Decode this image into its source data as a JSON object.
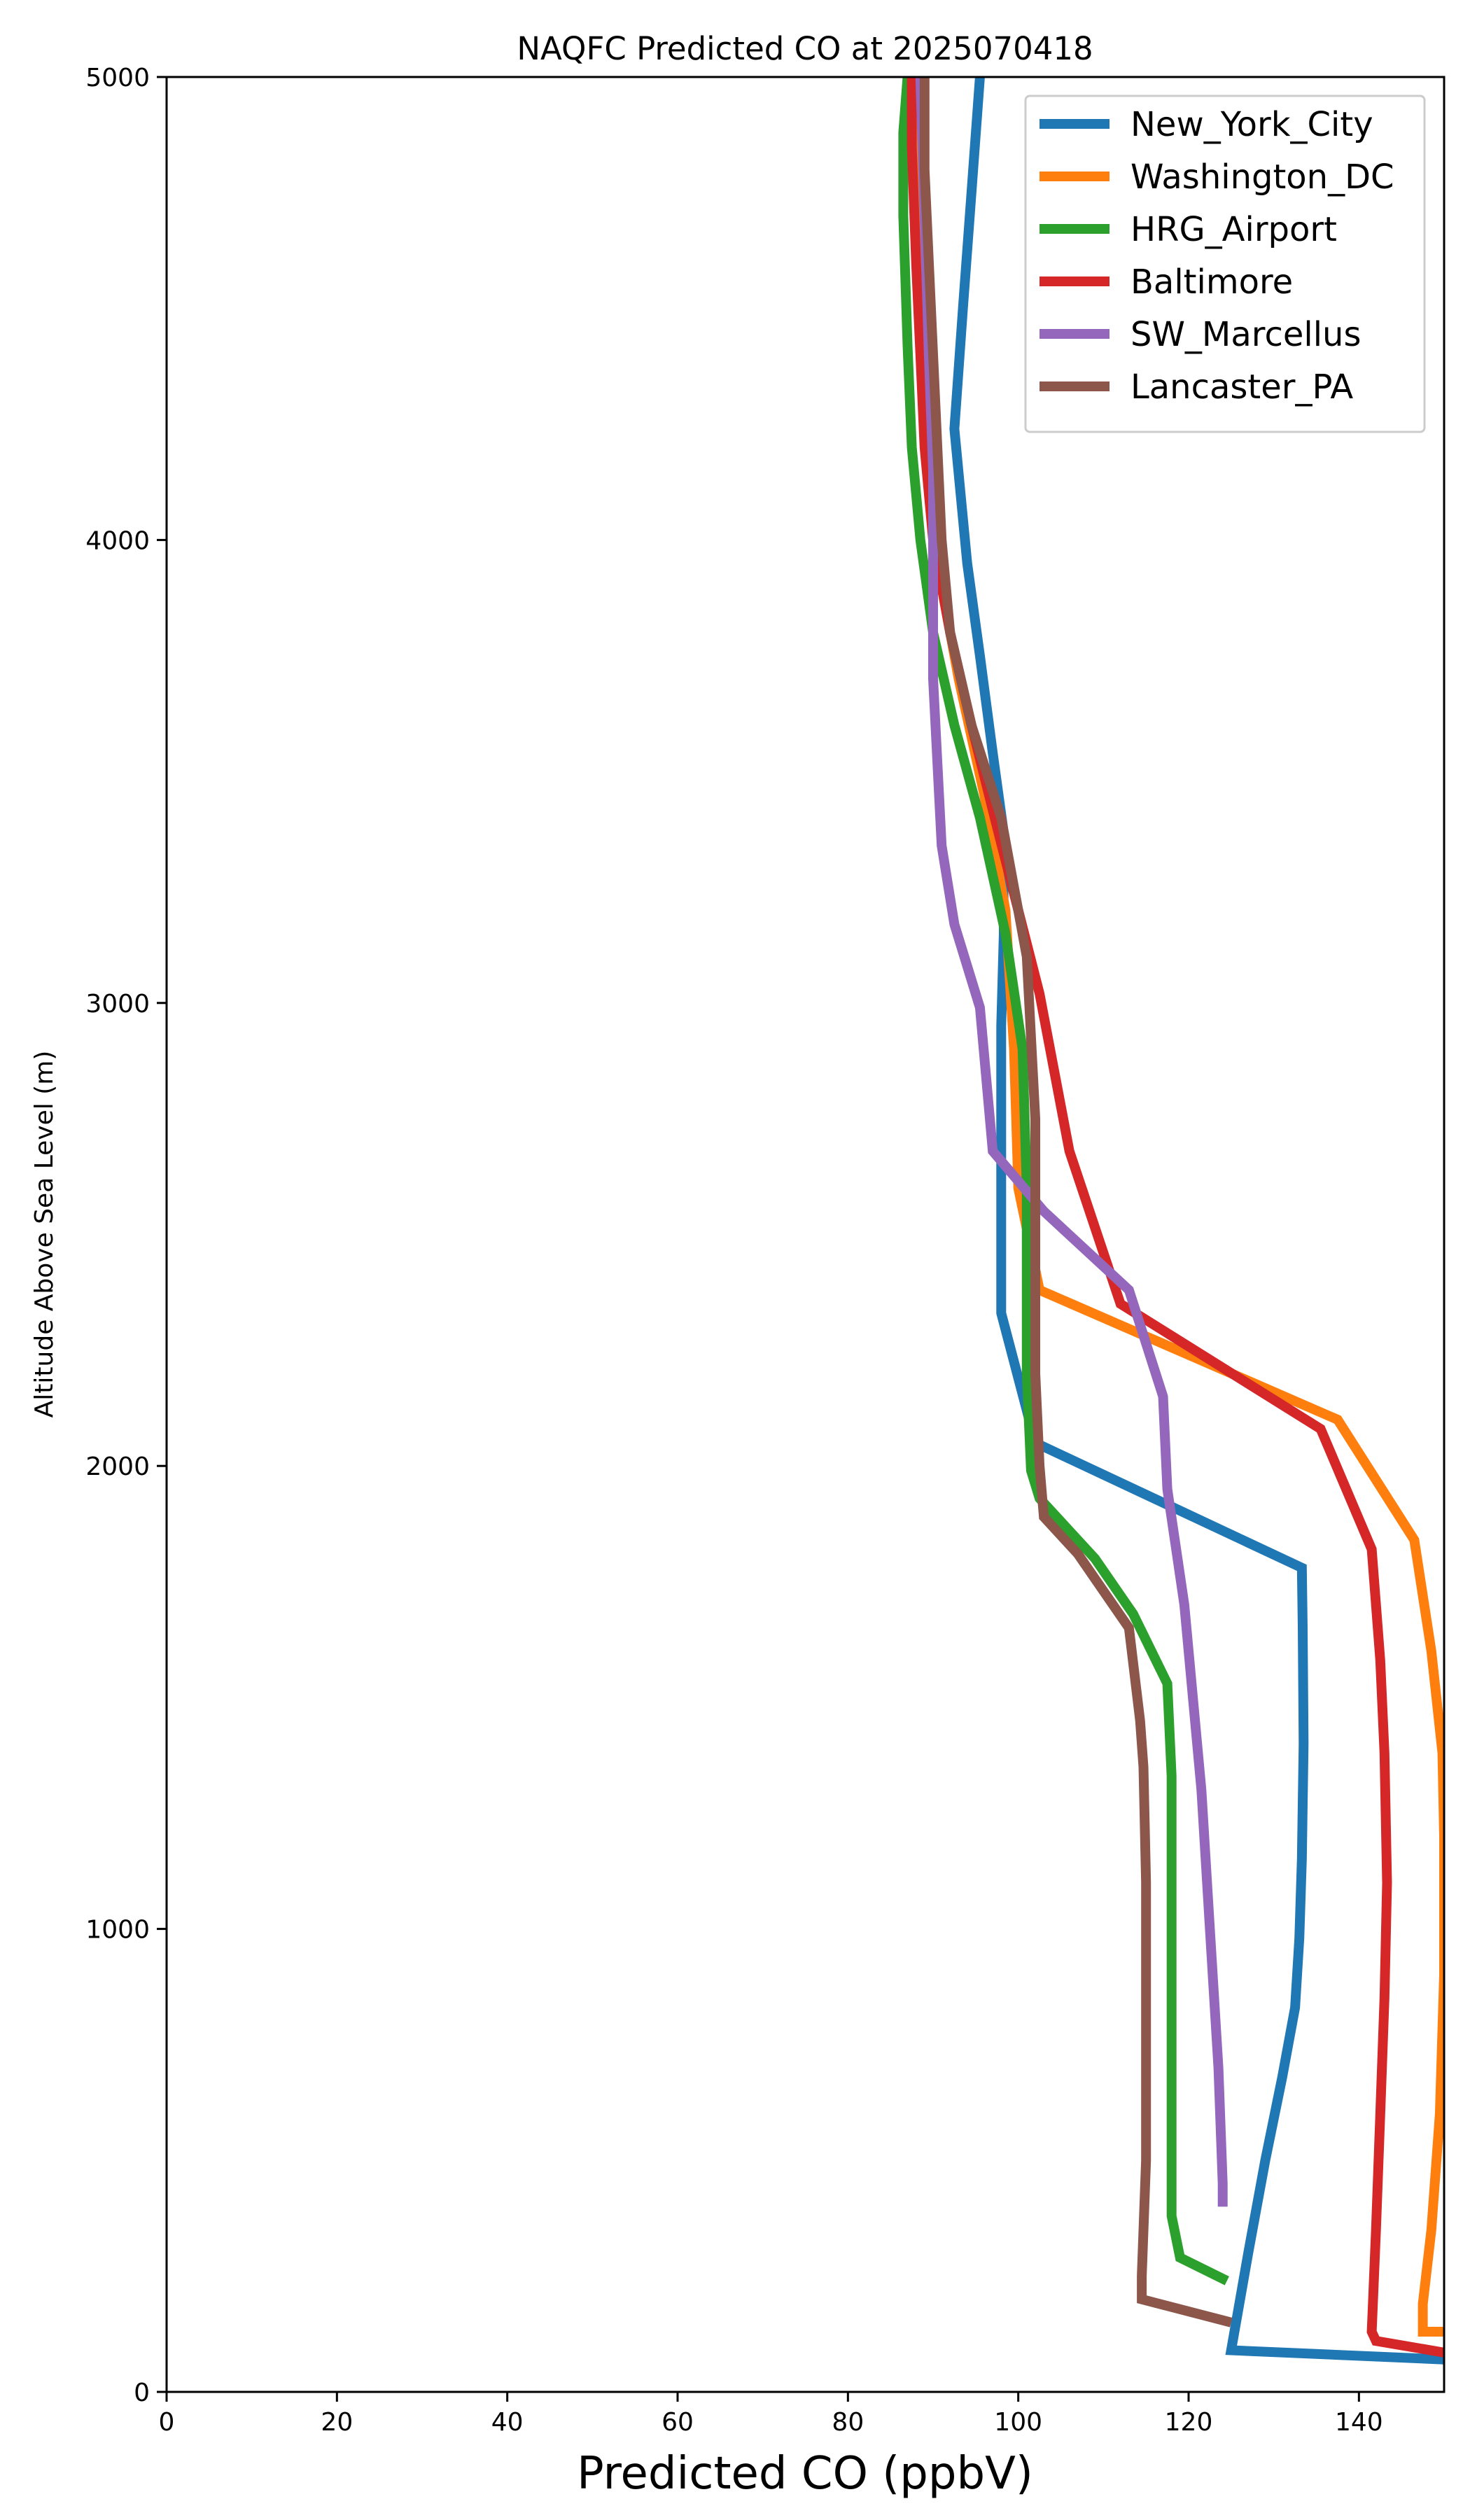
{
  "chart_data": {
    "type": "line",
    "title": "NAQFC Predicted CO at 2025070418",
    "xlabel": "Predicted CO (ppbV)",
    "ylabel": "Altitude Above Sea Level (m)",
    "xlim": [
      0,
      150
    ],
    "ylim": [
      0,
      5000
    ],
    "xticks": [
      "0",
      "20",
      "40",
      "60",
      "80",
      "100",
      "120",
      "140"
    ],
    "yticks": [
      "0",
      "1000",
      "2000",
      "3000",
      "4000",
      "5000"
    ],
    "grid": false,
    "legend_position": "top-right",
    "series": [
      {
        "name": "New_York_City",
        "color": "#1f77b4",
        "points": [
          [
            150,
            70
          ],
          [
            125,
            90
          ],
          [
            127,
            300
          ],
          [
            129,
            500
          ],
          [
            131,
            680
          ],
          [
            132.5,
            830
          ],
          [
            133,
            980
          ],
          [
            133.3,
            1150
          ],
          [
            133.5,
            1400
          ],
          [
            133.4,
            1650
          ],
          [
            133.3,
            1780
          ],
          [
            102,
            2050
          ],
          [
            98,
            2330
          ],
          [
            98,
            2650
          ],
          [
            98,
            2950
          ],
          [
            98.3,
            3150
          ],
          [
            98.2,
            3380
          ],
          [
            97,
            3540
          ],
          [
            95.5,
            3750
          ],
          [
            94,
            3950
          ],
          [
            92.5,
            4240
          ],
          [
            93.5,
            4500
          ],
          [
            94.5,
            4750
          ],
          [
            95.5,
            5000
          ]
        ]
      },
      {
        "name": "Washington_DC",
        "color": "#ff7f0e",
        "points": [
          [
            150,
            130
          ],
          [
            147.5,
            130
          ],
          [
            147.5,
            190
          ],
          [
            148.5,
            350
          ],
          [
            149.5,
            600
          ],
          [
            150,
            900
          ],
          [
            150,
            1200
          ],
          [
            149.8,
            1380
          ],
          [
            148.5,
            1600
          ],
          [
            146.5,
            1840
          ],
          [
            137.5,
            2100
          ],
          [
            102.5,
            2380
          ],
          [
            100,
            2600
          ],
          [
            99.5,
            2900
          ],
          [
            98.5,
            3200
          ],
          [
            96,
            3450
          ],
          [
            93,
            3700
          ],
          [
            91,
            3900
          ],
          [
            89.5,
            4200
          ],
          [
            88.5,
            4500
          ],
          [
            88,
            4800
          ],
          [
            88,
            5000
          ]
        ]
      },
      {
        "name": "HRG_Airport",
        "color": "#2ca02c",
        "points": [
          [
            124.5,
            240
          ],
          [
            119,
            290
          ],
          [
            118,
            380
          ],
          [
            118,
            800
          ],
          [
            118,
            1100
          ],
          [
            118,
            1330
          ],
          [
            117.5,
            1530
          ],
          [
            113.5,
            1680
          ],
          [
            109,
            1800
          ],
          [
            102.5,
            1930
          ],
          [
            101.5,
            1990
          ],
          [
            101,
            2200
          ],
          [
            101,
            2600
          ],
          [
            100.5,
            2900
          ],
          [
            98.5,
            3150
          ],
          [
            95.5,
            3400
          ],
          [
            92.5,
            3600
          ],
          [
            90,
            3800
          ],
          [
            88.5,
            4000
          ],
          [
            87.5,
            4200
          ],
          [
            87,
            4420
          ],
          [
            86.5,
            4700
          ],
          [
            86.5,
            4880
          ],
          [
            87,
            5000
          ]
        ]
      },
      {
        "name": "Baltimore",
        "color": "#d62728",
        "points": [
          [
            150,
            85
          ],
          [
            142,
            110
          ],
          [
            141.5,
            130
          ],
          [
            142,
            350
          ],
          [
            142.5,
            600
          ],
          [
            143,
            850
          ],
          [
            143.3,
            1100
          ],
          [
            143,
            1380
          ],
          [
            142.5,
            1580
          ],
          [
            141.5,
            1820
          ],
          [
            135.5,
            2080
          ],
          [
            112,
            2350
          ],
          [
            106,
            2680
          ],
          [
            102.5,
            3020
          ],
          [
            100,
            3200
          ],
          [
            97.5,
            3380
          ],
          [
            94.5,
            3600
          ],
          [
            92,
            3800
          ],
          [
            90,
            4000
          ],
          [
            89,
            4200
          ],
          [
            88.5,
            4400
          ],
          [
            88,
            4600
          ],
          [
            87.5,
            4850
          ],
          [
            87.5,
            5000
          ]
        ]
      },
      {
        "name": "SW_Marcellus",
        "color": "#9467bd",
        "points": [
          [
            124,
            400
          ],
          [
            124,
            450
          ],
          [
            123.5,
            700
          ],
          [
            122.5,
            1000
          ],
          [
            121.5,
            1300
          ],
          [
            120.5,
            1500
          ],
          [
            119.5,
            1700
          ],
          [
            117.5,
            1950
          ],
          [
            117,
            2150
          ],
          [
            113,
            2380
          ],
          [
            103,
            2550
          ],
          [
            97,
            2680
          ],
          [
            95.5,
            2990
          ],
          [
            92.5,
            3170
          ],
          [
            91,
            3340
          ],
          [
            90,
            3700
          ],
          [
            90,
            3900
          ],
          [
            90,
            4150
          ],
          [
            89.5,
            4400
          ],
          [
            89,
            4700
          ],
          [
            88.5,
            5000
          ]
        ]
      },
      {
        "name": "Lancaster_PA",
        "color": "#8c564b",
        "points": [
          [
            125,
            150
          ],
          [
            114.5,
            200
          ],
          [
            114.5,
            250
          ],
          [
            115,
            500
          ],
          [
            115,
            800
          ],
          [
            115,
            1100
          ],
          [
            114.7,
            1350
          ],
          [
            114.3,
            1450
          ],
          [
            113,
            1650
          ],
          [
            107,
            1810
          ],
          [
            103,
            1890
          ],
          [
            102.5,
            2000
          ],
          [
            102,
            2200
          ],
          [
            102,
            2500
          ],
          [
            102,
            2750
          ],
          [
            101,
            3100
          ],
          [
            98,
            3400
          ],
          [
            94.5,
            3600
          ],
          [
            92,
            3800
          ],
          [
            91,
            4000
          ],
          [
            90.5,
            4200
          ],
          [
            90,
            4400
          ],
          [
            89.5,
            4600
          ],
          [
            89,
            4800
          ],
          [
            89,
            5000
          ]
        ]
      }
    ]
  }
}
